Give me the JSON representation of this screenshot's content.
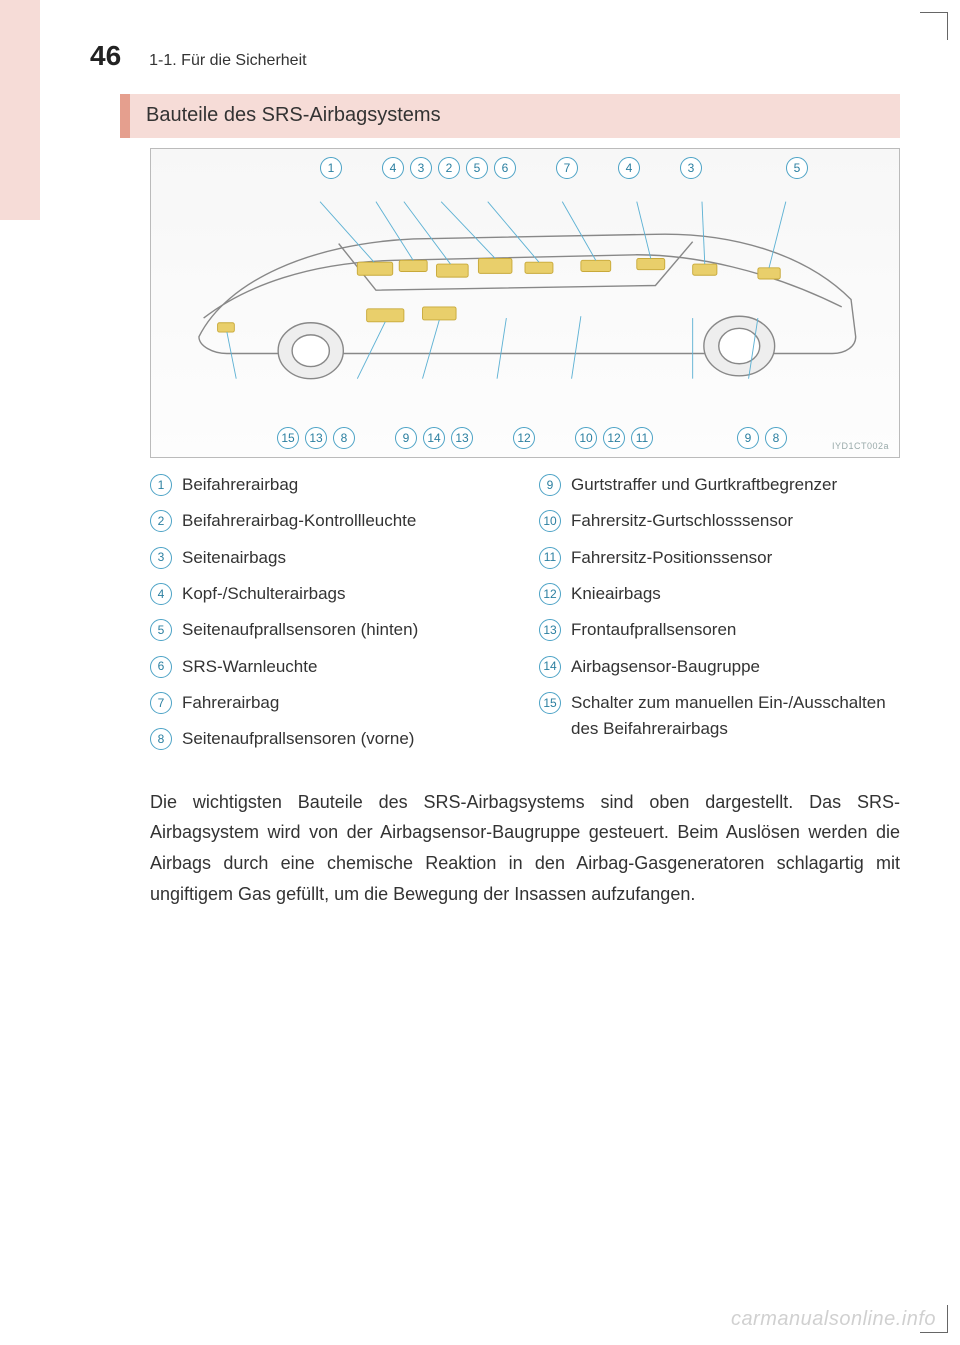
{
  "page_number": "46",
  "chapter": "1-1. Für die Sicherheit",
  "section_title": "Bauteile des SRS-Airbagsystems",
  "diagram": {
    "code": "IYD1CT002a",
    "callouts_top": [
      "1",
      "4",
      "3",
      "2",
      "5",
      "6",
      "7",
      "4",
      "3",
      "5"
    ],
    "callouts_top_gaps": [
      "gap-xl",
      "gap-md",
      "",
      "",
      "",
      "",
      "gap-md",
      "gap-md",
      "gap-md",
      "gap-xl"
    ],
    "callouts_bottom": [
      "15",
      "13",
      "8",
      "9",
      "14",
      "13",
      "12",
      "10",
      "12",
      "11",
      "9",
      "8"
    ],
    "callouts_bottom_gaps": [
      "gap-sm",
      "",
      "",
      "gap-md",
      "",
      "",
      "gap-md",
      "gap-md",
      "",
      "",
      "gap-xl",
      ""
    ],
    "car_outline_color": "#888888",
    "highlight_color": "#e9cf6b",
    "line_color": "#5fb2d4",
    "background_color": "#f9f9f9"
  },
  "legend_left": [
    {
      "n": "1",
      "t": "Beifahrerairbag"
    },
    {
      "n": "2",
      "t": "Beifahrerairbag-Kontrollleuchte"
    },
    {
      "n": "3",
      "t": "Seitenairbags"
    },
    {
      "n": "4",
      "t": "Kopf-/Schulterairbags"
    },
    {
      "n": "5",
      "t": "Seitenaufprallsensoren (hinten)"
    },
    {
      "n": "6",
      "t": "SRS-Warnleuchte"
    },
    {
      "n": "7",
      "t": "Fahrerairbag"
    },
    {
      "n": "8",
      "t": "Seitenaufprallsensoren (vorne)"
    }
  ],
  "legend_right": [
    {
      "n": "9",
      "t": "Gurtstraffer und Gurtkraftbegrenzer"
    },
    {
      "n": "10",
      "t": "Fahrersitz-Gurtschlosssensor"
    },
    {
      "n": "11",
      "t": "Fahrersitz-Positionssensor"
    },
    {
      "n": "12",
      "t": "Knieairbags"
    },
    {
      "n": "13",
      "t": "Frontaufprallsensoren"
    },
    {
      "n": "14",
      "t": "Airbagsensor-Baugruppe"
    },
    {
      "n": "15",
      "t": "Schalter zum manuellen Ein-/Ausschalten des Beifahrerairbags"
    }
  ],
  "body": "Die wichtigsten Bauteile des SRS-Airbagsystems sind oben dargestellt. Das SRS-Airbagsystem wird von der Airbagsensor-Baugruppe gesteuert. Beim Auslösen werden die Airbags durch eine chemische Reaktion in den Airbag-Gasgeneratoren schlagartig mit ungiftigem Gas gefüllt, um die Bewegung der Insassen aufzufangen.",
  "watermark": "carmanualsonline.info",
  "colors": {
    "tab_bg": "#f6dcd7",
    "accent": "#e59f8e",
    "circle_border": "#4da3c6",
    "circle_text": "#2b7fa0"
  }
}
